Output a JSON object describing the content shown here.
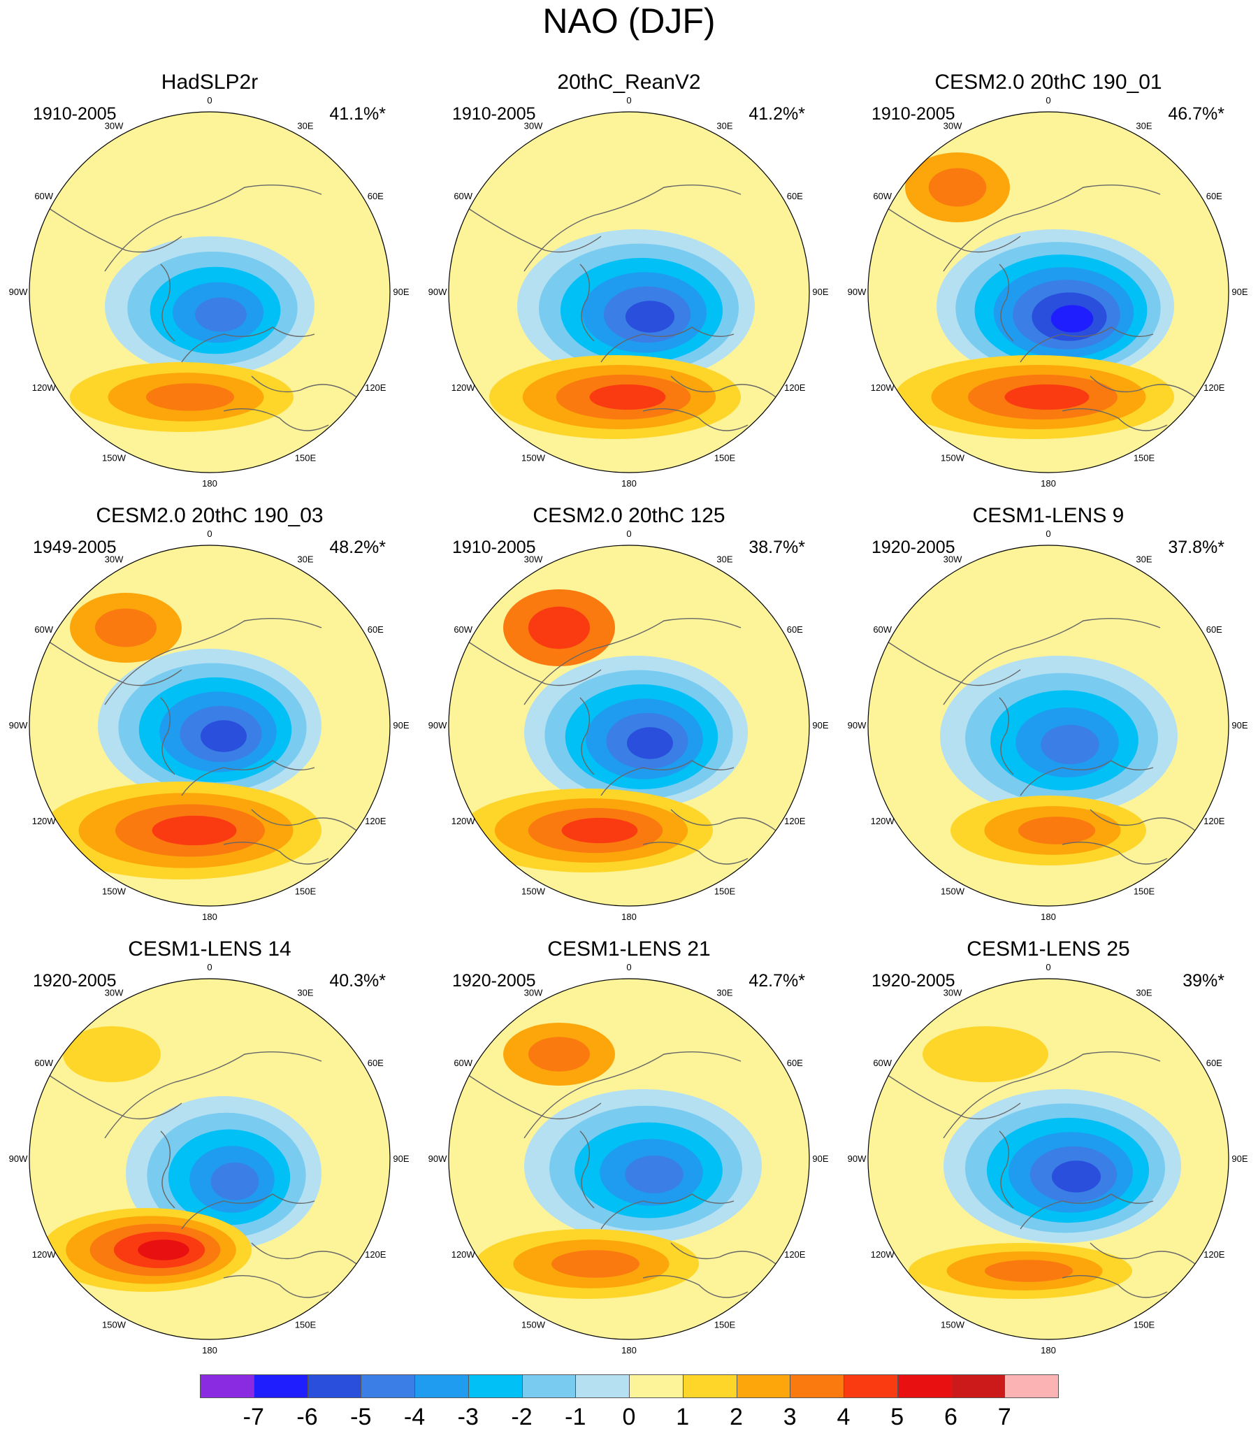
{
  "title": "NAO (DJF)",
  "chart_data": {
    "type": "heatmap",
    "projection": "north polar stereographic",
    "variable": "sea level pressure regression (NAO pattern)",
    "season": "DJF",
    "colorbar": {
      "labels": [
        "-7",
        "-6",
        "-5",
        "-4",
        "-3",
        "-2",
        "-1",
        "0",
        "1",
        "2",
        "3",
        "4",
        "5",
        "6",
        "7"
      ],
      "colors": [
        "#8a2be2",
        "#1e1eff",
        "#2b4fdd",
        "#3a7ee6",
        "#1f9bf0",
        "#00c0f5",
        "#79ccf0",
        "#b5e0f2",
        "#fdf49a",
        "#fed62a",
        "#fca60b",
        "#fa7a10",
        "#fa3a10",
        "#e81010",
        "#cc1a1a",
        "#fcb3b3"
      ]
    },
    "longitude_labels": [
      "180",
      "150E",
      "120E",
      "90E",
      "60E",
      "30E",
      "0",
      "30W",
      "60W",
      "90W",
      "120W",
      "150W"
    ],
    "panels": [
      {
        "title": "HadSLP2r",
        "period": "1910-2005",
        "variance": "41.1%*",
        "low_min": -5,
        "high_max": 3
      },
      {
        "title": "20thC_ReanV2",
        "period": "1910-2005",
        "variance": "41.2%*",
        "low_min": -6,
        "high_max": 4
      },
      {
        "title": "CESM2.0 20thC 190_01",
        "period": "1910-2005",
        "variance": "46.7%*",
        "low_min": -7,
        "high_max": 4
      },
      {
        "title": "CESM2.0 20thC 190_03",
        "period": "1949-2005",
        "variance": "48.2%*",
        "low_min": -6,
        "high_max": 4
      },
      {
        "title": "CESM2.0 20thC 125",
        "period": "1910-2005",
        "variance": "38.7%*",
        "low_min": -6,
        "high_max": 4
      },
      {
        "title": "CESM1-LENS 9",
        "period": "1920-2005",
        "variance": "37.8%*",
        "low_min": -5,
        "high_max": 3
      },
      {
        "title": "CESM1-LENS 14",
        "period": "1920-2005",
        "variance": "40.3%*",
        "low_min": -5,
        "high_max": 5
      },
      {
        "title": "CESM1-LENS 21",
        "period": "1920-2005",
        "variance": "42.7%*",
        "low_min": -5,
        "high_max": 3
      },
      {
        "title": "CESM1-LENS 25",
        "period": "1920-2005",
        "variance": "39%*",
        "low_min": -6,
        "high_max": 3
      }
    ]
  }
}
